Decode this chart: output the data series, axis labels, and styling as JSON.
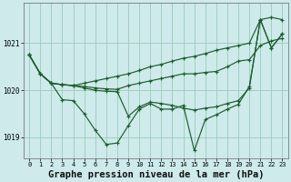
{
  "bg_color": "#ceeaea",
  "grid_color": "#99ccbb",
  "line_color": "#1e5c30",
  "xlabel": "Graphe pression niveau de la mer (hPa)",
  "xlabel_fontsize": 7.5,
  "ylim": [
    1018.55,
    1021.85
  ],
  "yticks": [
    1019,
    1020,
    1021
  ],
  "ytick_labels": [
    "1019",
    "1020",
    "1021"
  ],
  "xlim": [
    -0.5,
    23.5
  ],
  "xticks": [
    0,
    1,
    2,
    3,
    4,
    5,
    6,
    7,
    8,
    9,
    10,
    11,
    12,
    13,
    14,
    15,
    16,
    17,
    18,
    19,
    20,
    21,
    22,
    23
  ],
  "series": [
    [
      1020.75,
      1020.35,
      1020.15,
      1020.12,
      1020.1,
      1020.08,
      1020.05,
      1020.03,
      1020.02,
      1020.1,
      1020.15,
      1020.2,
      1020.25,
      1020.3,
      1020.35,
      1020.35,
      1020.38,
      1020.4,
      1020.5,
      1020.62,
      1020.65,
      1020.95,
      1021.05,
      1021.1
    ],
    [
      1020.75,
      1020.35,
      1020.15,
      1020.12,
      1020.1,
      1020.15,
      1020.2,
      1020.25,
      1020.3,
      1020.35,
      1020.42,
      1020.5,
      1020.55,
      1020.62,
      1020.68,
      1020.72,
      1020.78,
      1020.85,
      1020.9,
      1020.95,
      1021.0,
      1021.5,
      1021.55,
      1021.5
    ],
    [
      1020.75,
      1020.35,
      1020.15,
      1020.12,
      1020.1,
      1020.05,
      1020.0,
      1019.98,
      1019.97,
      1019.45,
      1019.65,
      1019.75,
      1019.72,
      1019.68,
      1019.62,
      1019.58,
      1019.62,
      1019.65,
      1019.72,
      1019.78,
      1020.05,
      1021.5,
      1020.9,
      1021.2
    ],
    [
      1020.75,
      1020.35,
      1020.15,
      1019.8,
      1019.78,
      1019.5,
      1019.15,
      1018.85,
      1018.88,
      1019.25,
      1019.6,
      1019.72,
      1019.6,
      1019.6,
      1019.68,
      1018.72,
      1019.38,
      1019.48,
      1019.6,
      1019.7,
      1020.08,
      1021.5,
      1020.9,
      1021.2
    ]
  ]
}
